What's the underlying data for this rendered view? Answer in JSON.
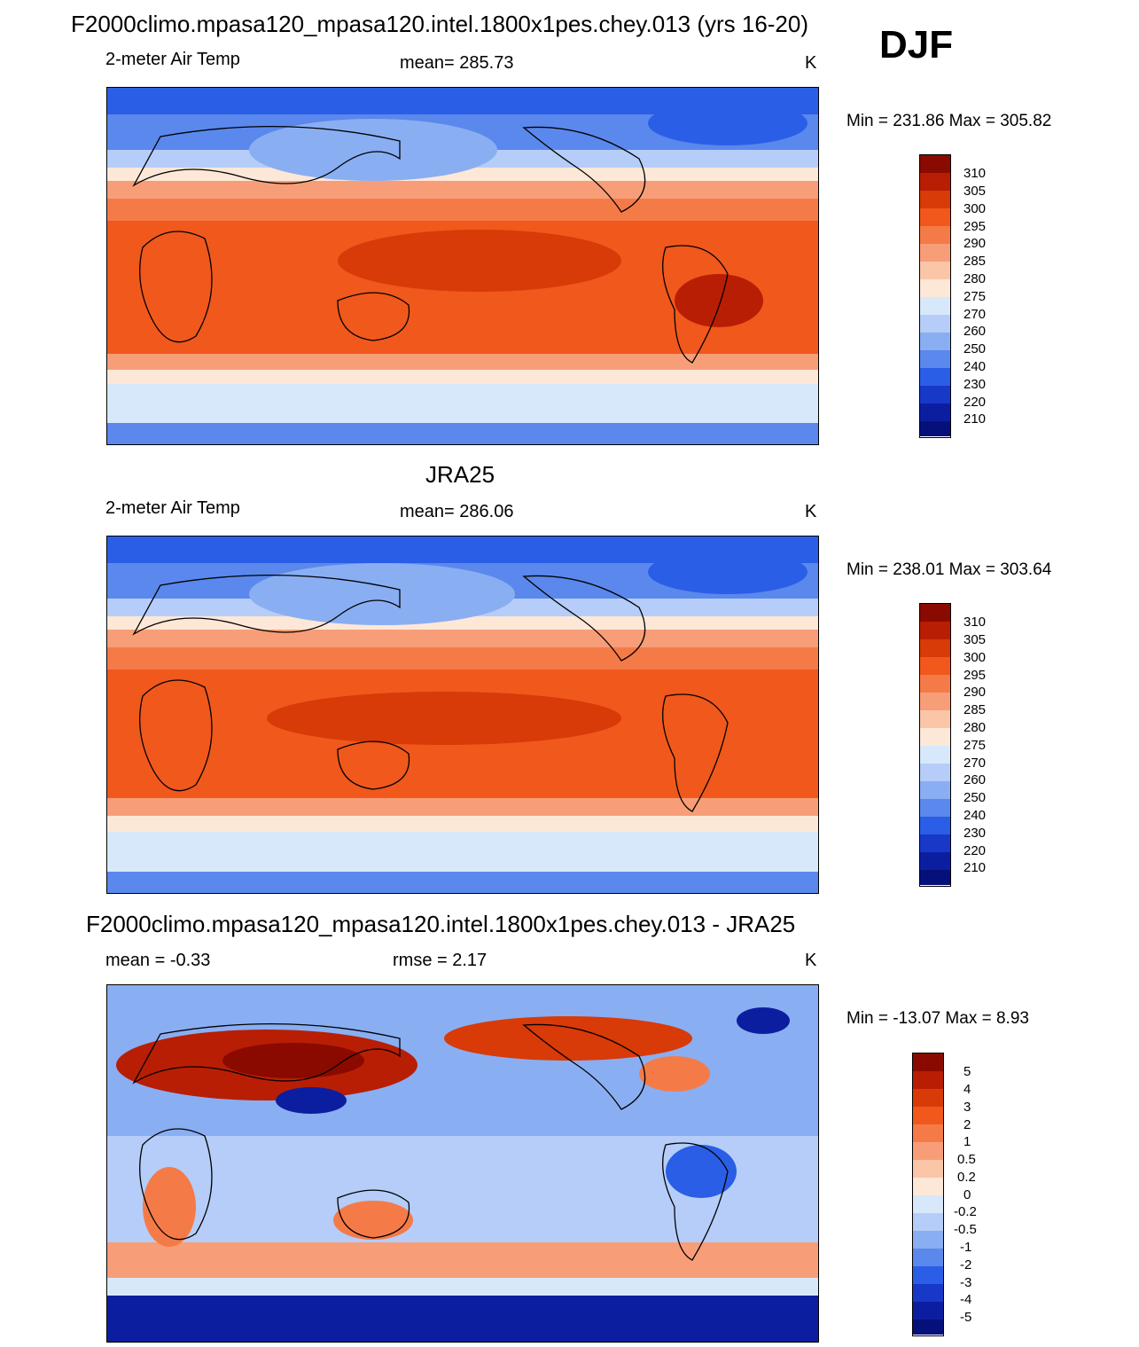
{
  "header": {
    "title": "F2000climo.mpasa120_mpasa120.intel.1800x1pes.chey.013 (yrs 16-20)",
    "season": "DJF"
  },
  "panels": [
    {
      "name": "model",
      "title": "",
      "left_label": "2-meter Air Temp",
      "center_label": "mean= 285.73",
      "units": "K",
      "minmax": "Min = 231.86 Max = 305.82"
    },
    {
      "name": "obs",
      "title": "JRA25",
      "left_label": "2-meter Air Temp",
      "center_label": "mean= 286.06",
      "units": "K",
      "minmax": "Min = 238.01 Max = 303.64"
    },
    {
      "name": "diff",
      "title": "F2000climo.mpasa120_mpasa120.intel.1800x1pes.chey.013 - JRA25",
      "left_label": "mean =  -0.33",
      "center_label": "rmse =   2.17",
      "units": "K",
      "minmax": "Min = -13.07 Max =   8.93"
    }
  ],
  "colorbars": {
    "temp": {
      "labels": [
        "310",
        "305",
        "300",
        "295",
        "290",
        "285",
        "280",
        "275",
        "270",
        "260",
        "250",
        "240",
        "230",
        "220",
        "210"
      ],
      "colors": [
        "#8a0a00",
        "#b81e04",
        "#d83a08",
        "#f0581c",
        "#f47b48",
        "#f79e78",
        "#fbc5a8",
        "#fde8d8",
        "#d8e8fb",
        "#b5cdf8",
        "#8aaef2",
        "#5a88ec",
        "#2a5ee6",
        "#1838c8",
        "#0c1ea0",
        "#06107a"
      ]
    },
    "diff": {
      "labels": [
        "5",
        "4",
        "3",
        "2",
        "1",
        "0.5",
        "0.2",
        "0",
        "-0.2",
        "-0.5",
        "-1",
        "-2",
        "-3",
        "-4",
        "-5"
      ],
      "colors": [
        "#8a0a00",
        "#b81e04",
        "#d83a08",
        "#f0581c",
        "#f47b48",
        "#f79e78",
        "#fbc5a8",
        "#fde8d8",
        "#d8e8fb",
        "#b5cdf8",
        "#8aaef2",
        "#5a88ec",
        "#2a5ee6",
        "#1838c8",
        "#0c1ea0",
        "#06107a"
      ]
    }
  }
}
